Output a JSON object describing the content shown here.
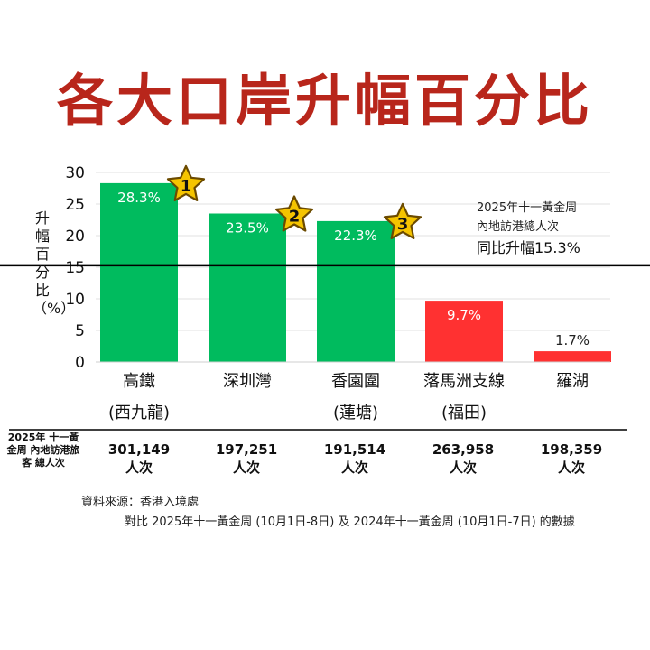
{
  "title": "各大口岸升幅百分比",
  "chart_data": {
    "type": "bar",
    "ylabel": "升幅百分比（%）",
    "ylim": [
      0,
      30
    ],
    "yticks": [
      0,
      5,
      10,
      15,
      20,
      25,
      30
    ],
    "grid": true,
    "categories": [
      {
        "name": "高鐵",
        "sub": "(西九龍)"
      },
      {
        "name": "深圳灣",
        "sub": ""
      },
      {
        "name": "香園圍",
        "sub": "(蓮塘)"
      },
      {
        "name": "落馬洲支線",
        "sub": "(福田)"
      },
      {
        "name": "羅湖",
        "sub": ""
      }
    ],
    "values": [
      28.3,
      23.5,
      22.3,
      9.7,
      1.7
    ],
    "value_labels": [
      "28.3%",
      "23.5%",
      "22.3%",
      "9.7%",
      "1.7%"
    ],
    "bar_colors": [
      "#00bb5e",
      "#00bb5e",
      "#00bb5e",
      "#ff3131",
      "#ff3131"
    ],
    "rank_badges": [
      "1",
      "2",
      "3"
    ],
    "badge_color": "#f5c400",
    "reference_line": {
      "value": 15.3,
      "label_lines": [
        "2025年十一黃金周",
        "內地訪港總人次"
      ],
      "label_big": "同比升幅15.3%"
    }
  },
  "totals": {
    "row_label": "2025年 十一黃金周 內地訪港旅客 總人次",
    "values": [
      {
        "count": "301,149",
        "unit": "人次"
      },
      {
        "count": "197,251",
        "unit": "人次"
      },
      {
        "count": "191,514",
        "unit": "人次"
      },
      {
        "count": "263,958",
        "unit": "人次"
      },
      {
        "count": "198,359",
        "unit": "人次"
      }
    ]
  },
  "source": {
    "line1": "資料來源：香港入境處",
    "line2": "對比 2025年十一黃金周 (10月1日-8日) 及 2024年十一黃金周 (10月1日-7日) 的數據"
  }
}
